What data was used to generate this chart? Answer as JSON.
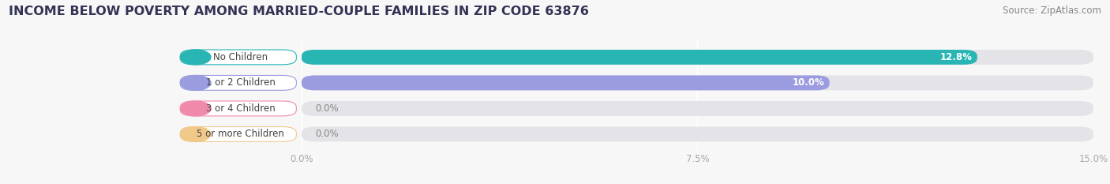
{
  "title": "INCOME BELOW POVERTY AMONG MARRIED-COUPLE FAMILIES IN ZIP CODE 63876",
  "source": "Source: ZipAtlas.com",
  "categories": [
    "No Children",
    "1 or 2 Children",
    "3 or 4 Children",
    "5 or more Children"
  ],
  "values": [
    12.8,
    10.0,
    0.0,
    0.0
  ],
  "bar_colors": [
    "#2ab5b5",
    "#9b9be0",
    "#f08aaa",
    "#f0c888"
  ],
  "xlim_data": [
    0,
    15.0
  ],
  "xticks": [
    0.0,
    7.5,
    15.0
  ],
  "xticklabels": [
    "0.0%",
    "7.5%",
    "15.0%"
  ],
  "background_color": "#f7f7f7",
  "bar_bg_color": "#e4e4e8",
  "title_fontsize": 11.5,
  "source_fontsize": 8.5,
  "bar_height": 0.58,
  "label_fontsize": 8.5,
  "value_fontsize": 8.5,
  "title_color": "#333355",
  "source_color": "#888888",
  "tick_color": "#aaaaaa"
}
